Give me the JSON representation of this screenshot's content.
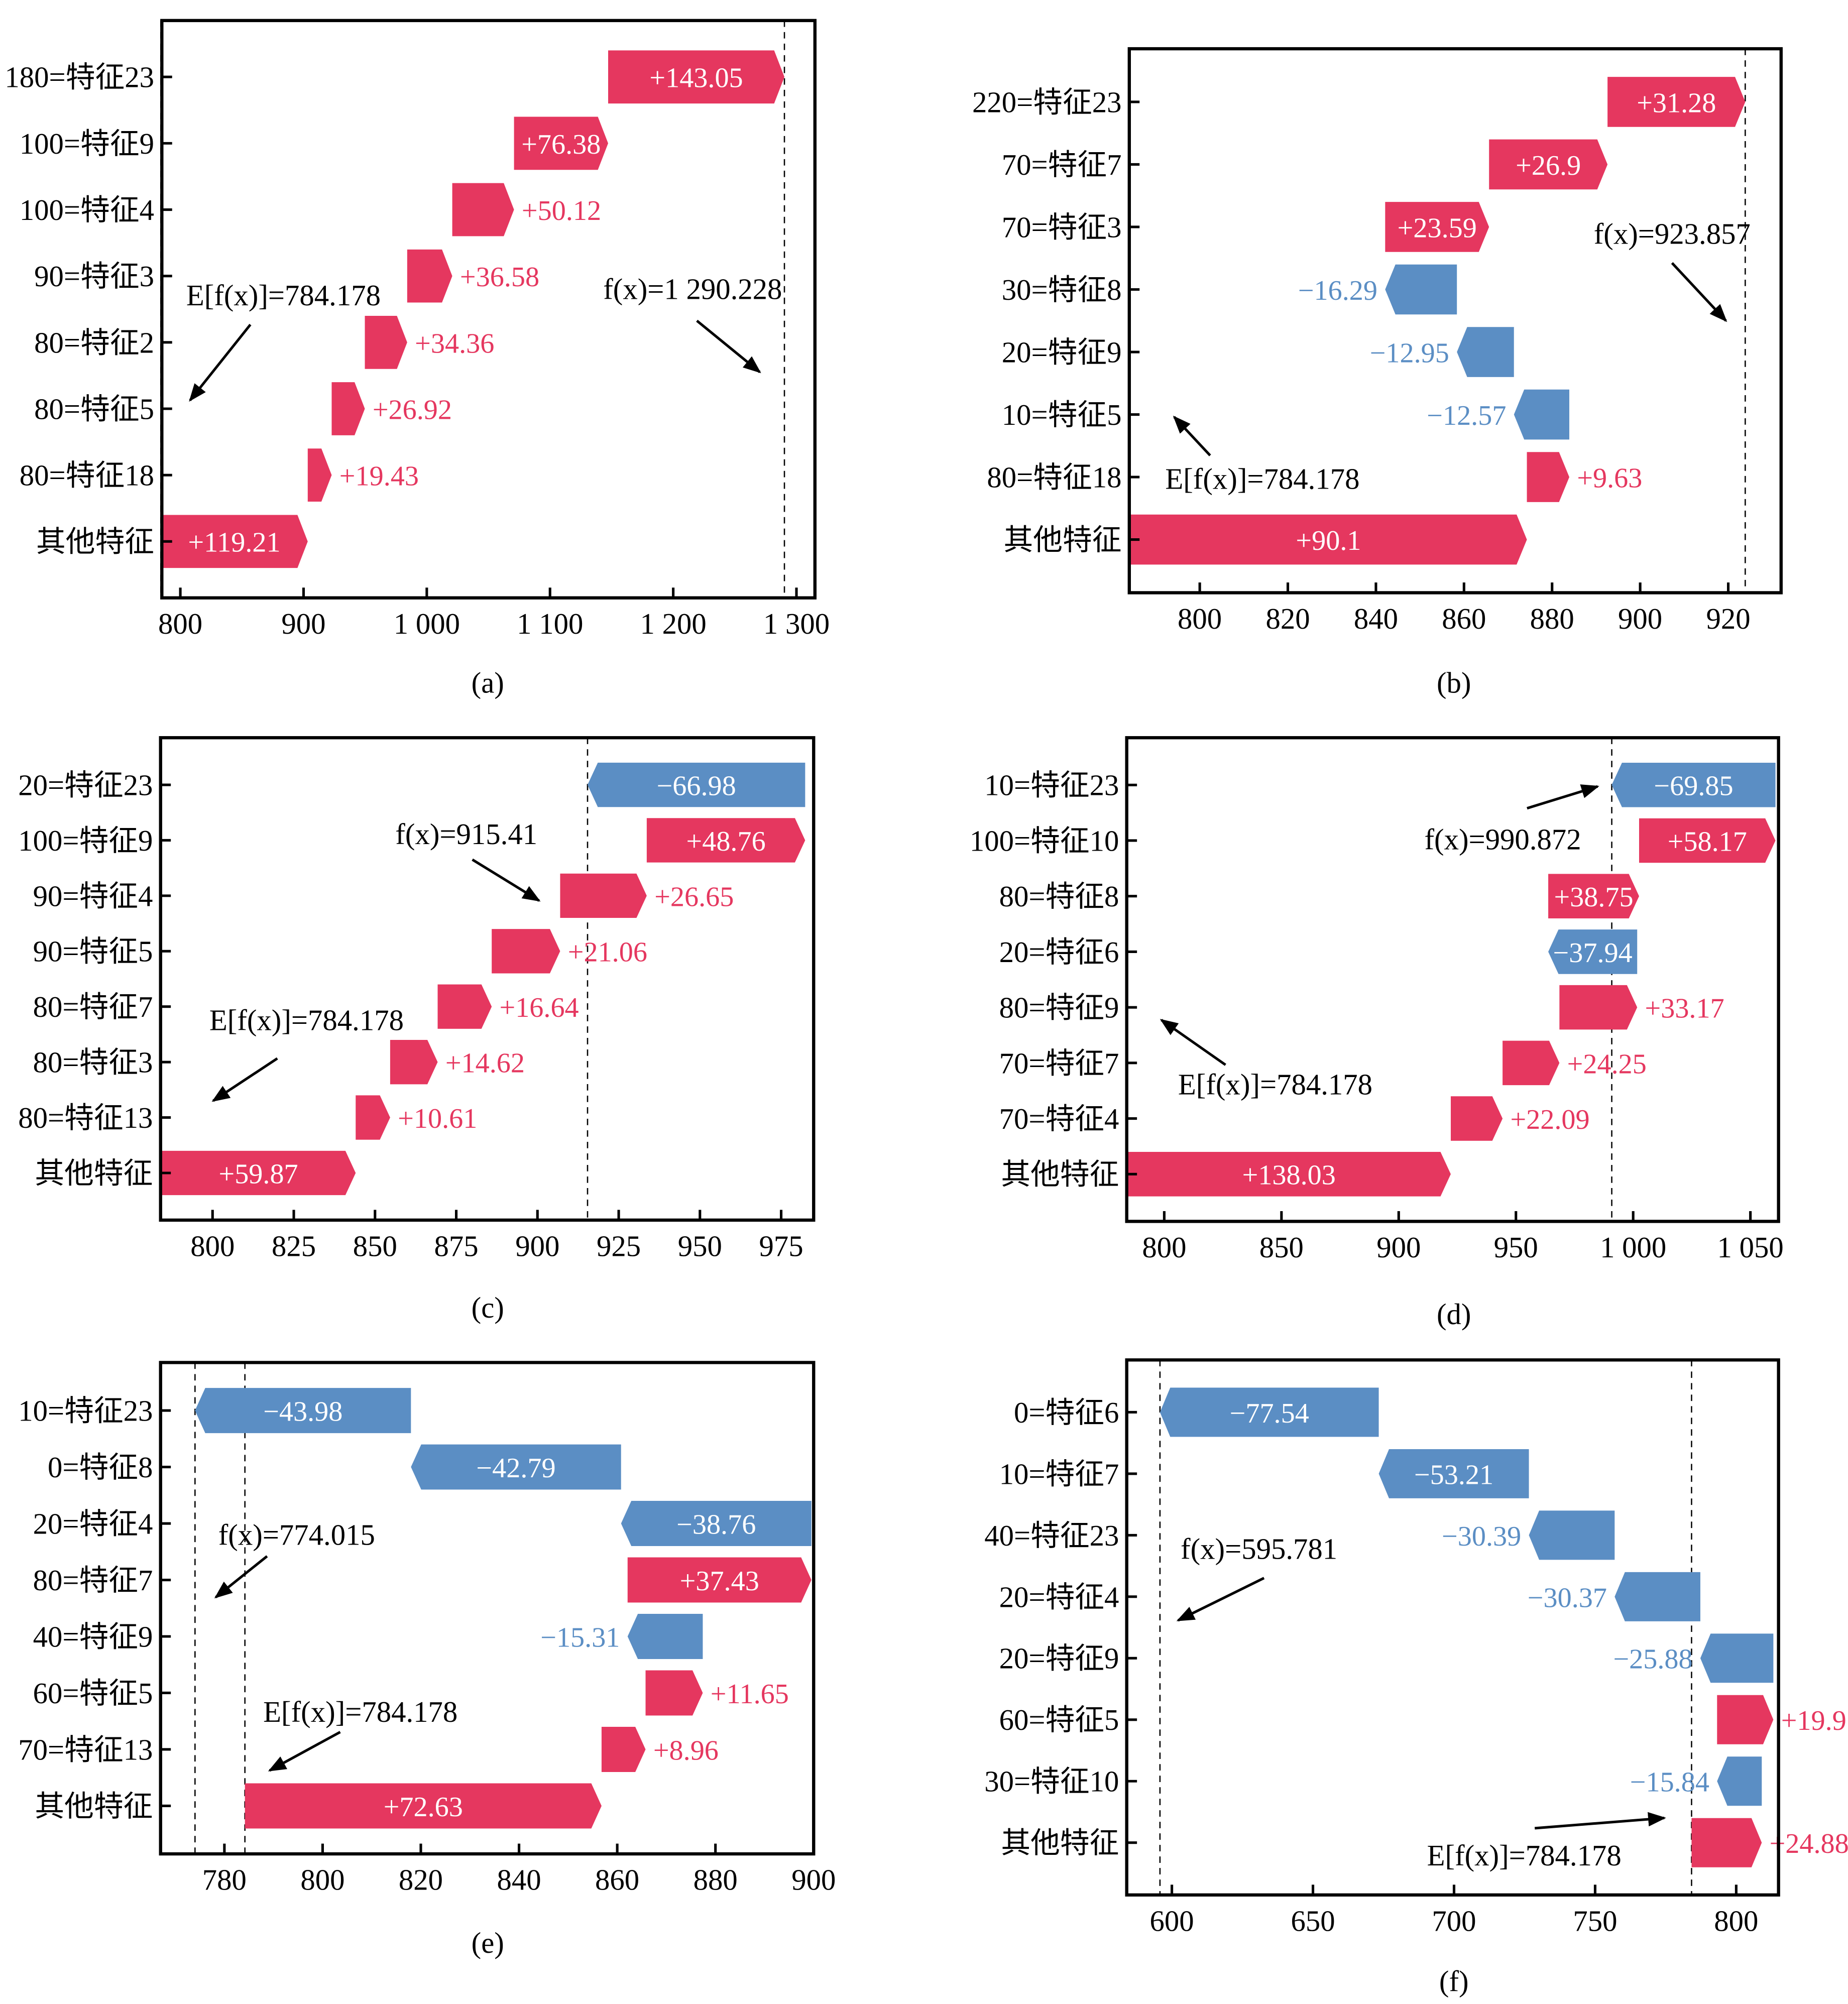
{
  "colors": {
    "positive": "#e5375f",
    "negative": "#5b8ec4",
    "axis": "#000000"
  },
  "chart_data": [
    {
      "type": "bar",
      "subtype": "waterfall",
      "caption": "(a)",
      "base_value": 784.178,
      "base_label": "E[f(x)]=784.178",
      "output_value": 1290.228,
      "output_label": "f(x)=1 290.228",
      "xlim": [
        785,
        1315
      ],
      "ticks": [
        {
          "v": 800,
          "label": "800"
        },
        {
          "v": 900,
          "label": "900"
        },
        {
          "v": 1000,
          "label": "1 000"
        },
        {
          "v": 1100,
          "label": "1 100"
        },
        {
          "v": 1200,
          "label": "1 200"
        },
        {
          "v": 1300,
          "label": "1 300"
        }
      ],
      "features": [
        {
          "label": "180=特征23",
          "value": 143.05,
          "text": "+143.05"
        },
        {
          "label": "100=特征9",
          "value": 76.38,
          "text": "+76.38"
        },
        {
          "label": "100=特征4",
          "value": 50.12,
          "text": "+50.12"
        },
        {
          "label": "90=特征3",
          "value": 36.58,
          "text": "+36.58"
        },
        {
          "label": "80=特征2",
          "value": 34.36,
          "text": "+34.36"
        },
        {
          "label": "80=特征5",
          "value": 26.92,
          "text": "+26.92"
        },
        {
          "label": "80=特征18",
          "value": 19.43,
          "text": "+19.43"
        },
        {
          "label": "其他特征",
          "value": 119.21,
          "text": "+119.21"
        }
      ]
    },
    {
      "type": "bar",
      "subtype": "waterfall",
      "caption": "(b)",
      "base_value": 784.178,
      "base_label": "E[f(x)]=784.178",
      "output_value": 923.857,
      "output_label": "f(x)=923.857",
      "xlim": [
        784,
        932
      ],
      "ticks": [
        {
          "v": 800,
          "label": "800"
        },
        {
          "v": 820,
          "label": "820"
        },
        {
          "v": 840,
          "label": "840"
        },
        {
          "v": 860,
          "label": "860"
        },
        {
          "v": 880,
          "label": "880"
        },
        {
          "v": 900,
          "label": "900"
        },
        {
          "v": 920,
          "label": "920"
        }
      ],
      "features": [
        {
          "label": "220=特征23",
          "value": 31.28,
          "text": "+31.28"
        },
        {
          "label": "70=特征7",
          "value": 26.9,
          "text": "+26.9"
        },
        {
          "label": "70=特征3",
          "value": 23.59,
          "text": "+23.59"
        },
        {
          "label": "30=特征8",
          "value": -16.29,
          "text": "−16.29"
        },
        {
          "label": "20=特征9",
          "value": -12.95,
          "text": "−12.95"
        },
        {
          "label": "10=特征5",
          "value": -12.57,
          "text": "−12.57"
        },
        {
          "label": "80=特征18",
          "value": 9.63,
          "text": "+9.63"
        },
        {
          "label": "其他特征",
          "value": 90.1,
          "text": "+90.1"
        }
      ]
    },
    {
      "type": "bar",
      "subtype": "waterfall",
      "caption": "(c)",
      "base_value": 784.178,
      "base_label": "E[f(x)]=784.178",
      "output_value": 915.41,
      "output_label": "f(x)=915.41",
      "xlim": [
        784,
        985
      ],
      "ticks": [
        {
          "v": 800,
          "label": "800"
        },
        {
          "v": 825,
          "label": "825"
        },
        {
          "v": 850,
          "label": "850"
        },
        {
          "v": 875,
          "label": "875"
        },
        {
          "v": 900,
          "label": "900"
        },
        {
          "v": 925,
          "label": "925"
        },
        {
          "v": 950,
          "label": "950"
        },
        {
          "v": 975,
          "label": "975"
        }
      ],
      "features": [
        {
          "label": "20=特征23",
          "value": -66.98,
          "text": "−66.98"
        },
        {
          "label": "100=特征9",
          "value": 48.76,
          "text": "+48.76"
        },
        {
          "label": "90=特征4",
          "value": 26.65,
          "text": "+26.65"
        },
        {
          "label": "90=特征5",
          "value": 21.06,
          "text": "+21.06"
        },
        {
          "label": "80=特征7",
          "value": 16.64,
          "text": "+16.64"
        },
        {
          "label": "80=特征3",
          "value": 14.62,
          "text": "+14.62"
        },
        {
          "label": "80=特征13",
          "value": 10.61,
          "text": "+10.61"
        },
        {
          "label": "其他特征",
          "value": 59.87,
          "text": "+59.87"
        }
      ]
    },
    {
      "type": "bar",
      "subtype": "waterfall",
      "caption": "(d)",
      "base_value": 784.178,
      "base_label": "E[f(x)]=784.178",
      "output_value": 990.872,
      "output_label": "f(x)=990.872",
      "xlim": [
        784,
        1062
      ],
      "ticks": [
        {
          "v": 800,
          "label": "800"
        },
        {
          "v": 850,
          "label": "850"
        },
        {
          "v": 900,
          "label": "900"
        },
        {
          "v": 950,
          "label": "950"
        },
        {
          "v": 1000,
          "label": "1 000"
        },
        {
          "v": 1050,
          "label": "1 050"
        }
      ],
      "features": [
        {
          "label": "10=特征23",
          "value": -69.85,
          "text": "−69.85"
        },
        {
          "label": "100=特征10",
          "value": 58.17,
          "text": "+58.17"
        },
        {
          "label": "80=特征8",
          "value": 38.75,
          "text": "+38.75"
        },
        {
          "label": "20=特征6",
          "value": -37.94,
          "text": "−37.94"
        },
        {
          "label": "80=特征9",
          "value": 33.17,
          "text": "+33.17"
        },
        {
          "label": "70=特征7",
          "value": 24.25,
          "text": "+24.25"
        },
        {
          "label": "70=特征4",
          "value": 22.09,
          "text": "+22.09"
        },
        {
          "label": "其他特征",
          "value": 138.03,
          "text": "+138.03"
        }
      ]
    },
    {
      "type": "bar",
      "subtype": "waterfall",
      "caption": "(e)",
      "base_value": 784.178,
      "base_label": "E[f(x)]=784.178",
      "output_value": 774.015,
      "output_label": "f(x)=774.015",
      "xlim": [
        767,
        900
      ],
      "ticks": [
        {
          "v": 780,
          "label": "780"
        },
        {
          "v": 800,
          "label": "800"
        },
        {
          "v": 820,
          "label": "820"
        },
        {
          "v": 840,
          "label": "840"
        },
        {
          "v": 860,
          "label": "860"
        },
        {
          "v": 880,
          "label": "880"
        },
        {
          "v": 900,
          "label": "900"
        }
      ],
      "features": [
        {
          "label": "10=特征23",
          "value": -43.98,
          "text": "−43.98"
        },
        {
          "label": "0=特征8",
          "value": -42.79,
          "text": "−42.79"
        },
        {
          "label": "20=特征4",
          "value": -38.76,
          "text": "−38.76"
        },
        {
          "label": "80=特征7",
          "value": 37.43,
          "text": "+37.43"
        },
        {
          "label": "40=特征9",
          "value": -15.31,
          "text": "−15.31"
        },
        {
          "label": "60=特征5",
          "value": 11.65,
          "text": "+11.65"
        },
        {
          "label": "70=特征13",
          "value": 8.96,
          "text": "+8.96"
        },
        {
          "label": "其他特征",
          "value": 72.63,
          "text": "+72.63"
        }
      ]
    },
    {
      "type": "bar",
      "subtype": "waterfall",
      "caption": "(f)",
      "base_value": 784.178,
      "base_label": "E[f(x)]=784.178",
      "output_value": 595.781,
      "output_label": "f(x)=595.781",
      "xlim": [
        584,
        815
      ],
      "ticks": [
        {
          "v": 600,
          "label": "600"
        },
        {
          "v": 650,
          "label": "650"
        },
        {
          "v": 700,
          "label": "700"
        },
        {
          "v": 750,
          "label": "750"
        },
        {
          "v": 800,
          "label": "800"
        }
      ],
      "features": [
        {
          "label": "0=特征6",
          "value": -77.54,
          "text": "−77.54"
        },
        {
          "label": "10=特征7",
          "value": -53.21,
          "text": "−53.21"
        },
        {
          "label": "40=特征23",
          "value": -30.39,
          "text": "−30.39"
        },
        {
          "label": "20=特征4",
          "value": -30.37,
          "text": "−30.37"
        },
        {
          "label": "20=特征9",
          "value": -25.88,
          "text": "−25.88"
        },
        {
          "label": "60=特征5",
          "value": 19.95,
          "text": "+19.95"
        },
        {
          "label": "30=特征10",
          "value": -15.84,
          "text": "−15.84"
        },
        {
          "label": "其他特征",
          "value": 24.88,
          "text": "+24.88"
        }
      ]
    }
  ]
}
